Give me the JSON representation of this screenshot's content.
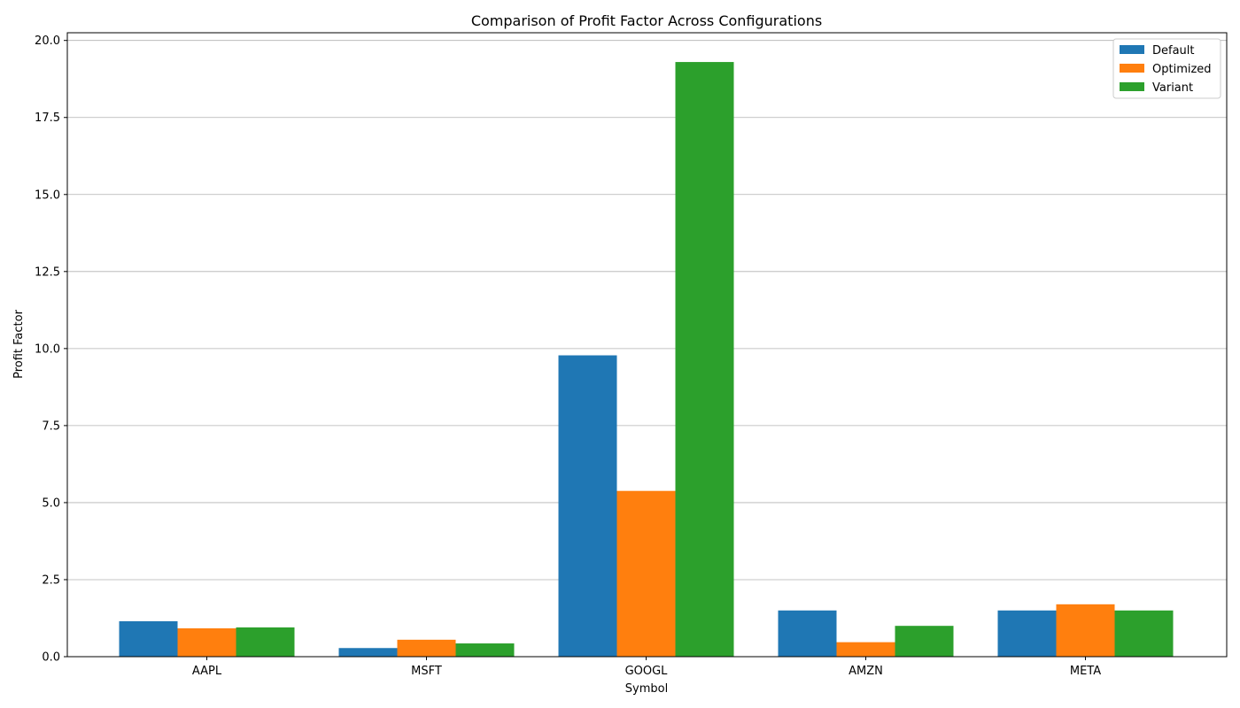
{
  "chart_data": {
    "type": "bar",
    "title": "Comparison of Profit Factor Across Configurations",
    "xlabel": "Symbol",
    "ylabel": "Profit Factor",
    "categories": [
      "AAPL",
      "MSFT",
      "GOOGL",
      "AMZN",
      "META"
    ],
    "series": [
      {
        "name": "Default",
        "color": "#1f77b4",
        "values": [
          1.15,
          0.28,
          9.78,
          1.5,
          1.5
        ]
      },
      {
        "name": "Optimized",
        "color": "#ff7f0e",
        "values": [
          0.92,
          0.55,
          5.38,
          0.47,
          1.7
        ]
      },
      {
        "name": "Variant",
        "color": "#2ca02c",
        "values": [
          0.95,
          0.43,
          19.3,
          1.0,
          1.5
        ]
      }
    ],
    "ylim": [
      0,
      20.25
    ],
    "yticks": [
      0.0,
      2.5,
      5.0,
      7.5,
      10.0,
      12.5,
      15.0,
      17.5,
      20.0
    ],
    "ytick_labels": [
      "0.0",
      "2.5",
      "5.0",
      "7.5",
      "10.0",
      "12.5",
      "15.0",
      "17.5",
      "20.0"
    ],
    "grid": "y",
    "legend_position": "top-right"
  }
}
